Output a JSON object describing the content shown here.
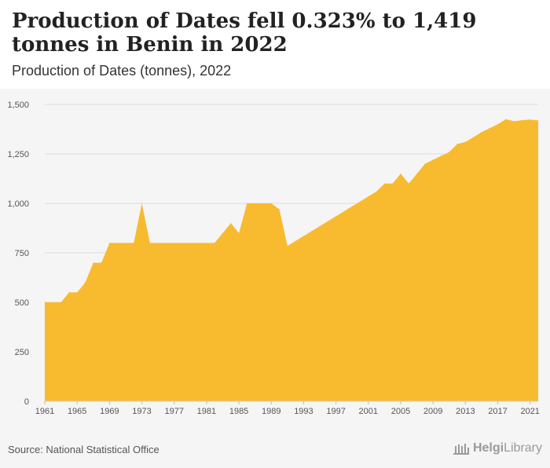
{
  "header": {
    "title": "Production of Dates fell 0.323% to 1,419 tonnes in Benin in 2022",
    "subtitle": "Production of Dates (tonnes), 2022"
  },
  "footer": {
    "source": "Source: National Statistical Office",
    "logo_bold": "Helgi",
    "logo_regular": "Library"
  },
  "colors": {
    "area_fill": "#f8bb2f",
    "grid": "#dcdcdc",
    "tick_text": "#555555"
  },
  "chart_data": {
    "type": "area",
    "x": [
      1961,
      1962,
      1963,
      1964,
      1965,
      1966,
      1967,
      1968,
      1969,
      1970,
      1971,
      1972,
      1973,
      1974,
      1975,
      1976,
      1977,
      1978,
      1979,
      1980,
      1981,
      1982,
      1983,
      1984,
      1985,
      1986,
      1987,
      1988,
      1989,
      1990,
      1991,
      1992,
      1993,
      1994,
      1995,
      1996,
      1997,
      1998,
      1999,
      2000,
      2001,
      2002,
      2003,
      2004,
      2005,
      2006,
      2007,
      2008,
      2009,
      2010,
      2011,
      2012,
      2013,
      2014,
      2015,
      2016,
      2017,
      2018,
      2019,
      2020,
      2021,
      2022
    ],
    "series": [
      {
        "values": [
          500,
          500,
          500,
          550,
          550,
          600,
          700,
          700,
          800,
          800,
          800,
          800,
          1000,
          800,
          800,
          800,
          800,
          800,
          800,
          800,
          800,
          800,
          850,
          900,
          850,
          1000,
          1000,
          1000,
          1000,
          970,
          785,
          810,
          835,
          860,
          885,
          910,
          935,
          960,
          985,
          1010,
          1035,
          1060,
          1100,
          1100,
          1150,
          1100,
          1150,
          1200,
          1220,
          1240,
          1260,
          1300,
          1310,
          1335,
          1360,
          1380,
          1400,
          1425,
          1415,
          1420,
          1423,
          1419
        ]
      }
    ],
    "ylim": [
      0,
      1500
    ],
    "yticks": [
      0,
      250,
      500,
      750,
      1000,
      1250,
      1500
    ],
    "ytick_labels": [
      "0",
      "250",
      "500",
      "750",
      "1,000",
      "1,250",
      "1,500"
    ],
    "xticks": [
      1961,
      1965,
      1969,
      1973,
      1977,
      1981,
      1985,
      1989,
      1993,
      1997,
      2001,
      2005,
      2009,
      2013,
      2017,
      2021
    ],
    "xtick_labels": [
      "1961",
      "1965",
      "1969",
      "1973",
      "1977",
      "1981",
      "1985",
      "1989",
      "1993",
      "1997",
      "2001",
      "2005",
      "2009",
      "2013",
      "2017",
      "2021"
    ],
    "grid": true
  }
}
